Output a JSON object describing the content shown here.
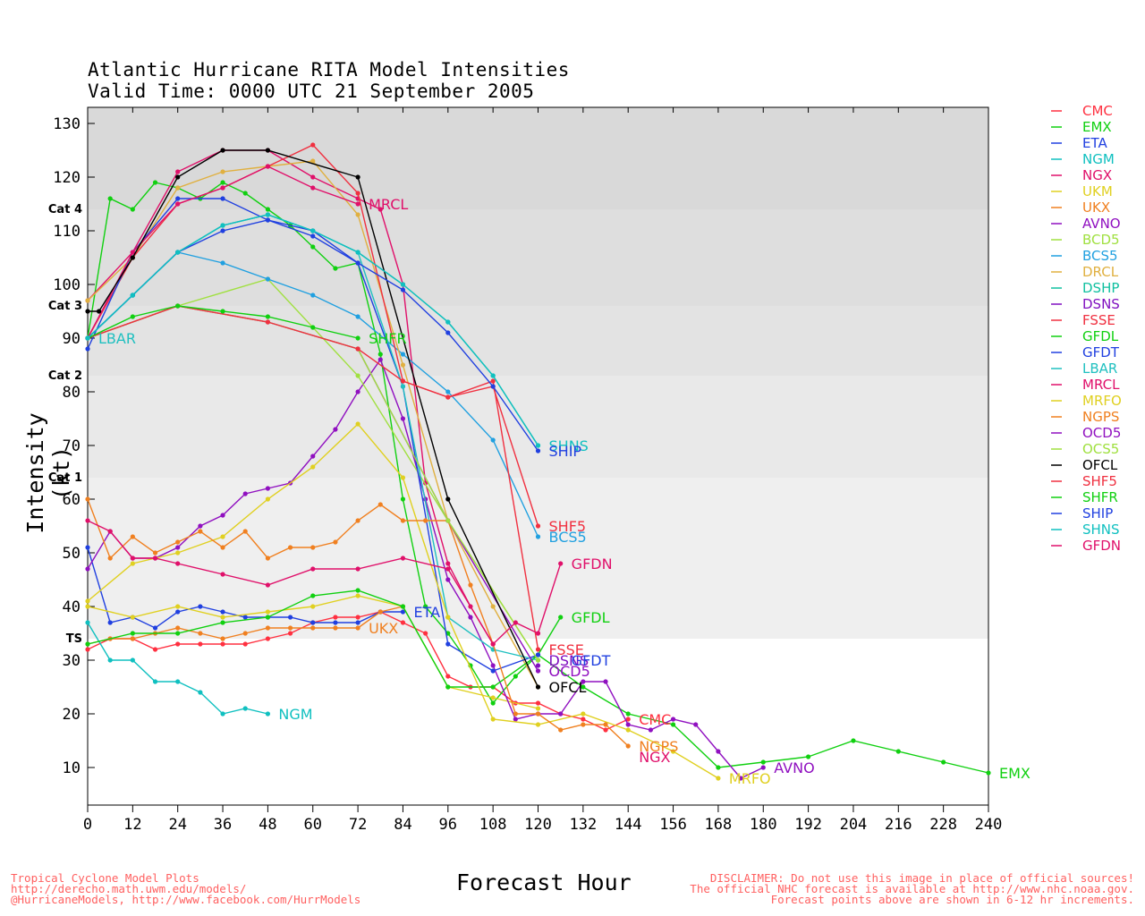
{
  "chart_data": {
    "type": "line",
    "title": "Atlantic Hurricane RITA Model Intensities",
    "subtitle": "Valid Time: 0000 UTC 21 September 2005",
    "xlabel": "Forecast Hour",
    "ylabel": "Intensity (kt)",
    "xlim": [
      0,
      240
    ],
    "ylim": [
      3,
      133
    ],
    "xticks": [
      0,
      12,
      24,
      36,
      48,
      60,
      72,
      84,
      96,
      108,
      120,
      132,
      144,
      156,
      168,
      180,
      192,
      204,
      216,
      228,
      240
    ],
    "yticks": [
      10,
      20,
      30,
      40,
      50,
      60,
      70,
      80,
      90,
      100,
      110,
      120,
      130
    ],
    "categories": [
      {
        "label": "TS",
        "min": 34,
        "max": 64,
        "color": "#efefef"
      },
      {
        "label": "Cat 1",
        "min": 64,
        "max": 83,
        "color": "#e9e9e9"
      },
      {
        "label": "Cat 2",
        "min": 83,
        "max": 96,
        "color": "#e3e3e3"
      },
      {
        "label": "Cat 3",
        "min": 96,
        "max": 114,
        "color": "#dedede"
      },
      {
        "label": "Cat 4",
        "min": 114,
        "max": 133,
        "color": "#d9d9d9"
      }
    ],
    "series": [
      {
        "name": "CMC",
        "color": "#ff3040",
        "x": [
          0,
          6,
          12,
          18,
          24,
          30,
          36,
          42,
          48,
          54,
          60,
          66,
          72,
          78,
          84,
          90,
          96,
          102,
          108,
          114,
          120,
          126,
          132,
          138,
          144
        ],
        "y": [
          32,
          34,
          34,
          32,
          33,
          33,
          33,
          33,
          34,
          35,
          37,
          38,
          38,
          39,
          37,
          35,
          27,
          25,
          25,
          22,
          22,
          20,
          19,
          17,
          19
        ]
      },
      {
        "name": "EMX",
        "color": "#10d010",
        "x": [
          0,
          6,
          12,
          18,
          24,
          30,
          36,
          42,
          48,
          54,
          60,
          66,
          72,
          78,
          84,
          90,
          96,
          102,
          108,
          114,
          120,
          132,
          144,
          156,
          168,
          180,
          192,
          204,
          216,
          228,
          240
        ],
        "y": [
          90,
          116,
          114,
          119,
          118,
          116,
          119,
          117,
          114,
          111,
          107,
          103,
          104,
          87,
          60,
          40,
          35,
          29,
          22,
          27,
          31,
          25,
          20,
          18,
          10,
          11,
          12,
          15,
          13,
          11,
          9
        ]
      },
      {
        "name": "ETA",
        "color": "#2040e0",
        "x": [
          0,
          6,
          12,
          18,
          24,
          30,
          36,
          42,
          48,
          54,
          60,
          66,
          72,
          78,
          84
        ],
        "y": [
          51,
          37,
          38,
          36,
          39,
          40,
          39,
          38,
          38,
          38,
          37,
          37,
          37,
          39,
          39
        ]
      },
      {
        "name": "NGM",
        "color": "#10c0c0",
        "x": [
          0,
          6,
          12,
          18,
          24,
          30,
          36,
          42,
          48
        ],
        "y": [
          37,
          30,
          30,
          26,
          26,
          24,
          20,
          21,
          20
        ]
      },
      {
        "name": "NGX",
        "color": "#e0106a",
        "x": [
          0,
          12,
          24,
          36,
          48,
          60,
          72,
          78,
          84,
          90,
          96,
          102,
          108
        ],
        "y": [
          97,
          106,
          121,
          125,
          125,
          120,
          116,
          114,
          100,
          63,
          48,
          40,
          33
        ]
      },
      {
        "name": "UKM",
        "color": "#e0d020",
        "x": [
          0,
          12,
          24,
          36,
          48,
          60,
          72,
          84,
          96,
          108,
          120
        ],
        "y": [
          40,
          38,
          40,
          38,
          39,
          40,
          42,
          40,
          25,
          23,
          21
        ]
      },
      {
        "name": "UKX",
        "color": "#f08020",
        "x": [
          0,
          6,
          12,
          18,
          24,
          30,
          36,
          42,
          48,
          54,
          60,
          66,
          72,
          78,
          84
        ],
        "y": [
          33,
          34,
          34,
          35,
          36,
          35,
          34,
          35,
          36,
          36,
          36,
          36,
          36,
          39,
          40
        ]
      },
      {
        "name": "AVNO",
        "color": "#9010c0",
        "x": [
          0,
          6,
          12,
          18,
          24,
          30,
          36,
          42,
          48,
          54,
          60,
          66,
          72,
          78,
          84,
          90,
          96,
          102,
          108,
          114,
          120,
          126,
          132,
          138,
          144,
          150,
          156,
          162,
          168,
          174,
          180
        ],
        "y": [
          47,
          54,
          49,
          49,
          51,
          55,
          57,
          61,
          62,
          63,
          68,
          73,
          80,
          86,
          75,
          60,
          45,
          38,
          29,
          19,
          20,
          20,
          26,
          26,
          18,
          17,
          19,
          18,
          13,
          8,
          10
        ]
      },
      {
        "name": "BCD5",
        "color": "#a0e040",
        "x": [
          0,
          24,
          48,
          72,
          96,
          120
        ],
        "y": [
          90,
          96,
          101,
          83,
          56,
          30
        ]
      },
      {
        "name": "BCS5",
        "color": "#20a0e0",
        "x": [
          0,
          12,
          24,
          36,
          48,
          60,
          72,
          84,
          96,
          108,
          120
        ],
        "y": [
          90,
          98,
          106,
          104,
          101,
          98,
          94,
          87,
          80,
          71,
          53
        ]
      },
      {
        "name": "DRCL",
        "color": "#e0b040",
        "x": [
          0,
          12,
          24,
          36,
          48,
          60,
          72,
          84,
          96,
          108,
          120
        ],
        "y": [
          97,
          105,
          118,
          121,
          122,
          123,
          113,
          85,
          56,
          40,
          25
        ]
      },
      {
        "name": "DSHP",
        "color": "#10c0a0",
        "x": [
          0,
          12,
          24,
          36,
          48,
          60,
          72,
          84,
          96,
          108,
          120
        ],
        "y": [
          90,
          98,
          106,
          111,
          113,
          110,
          106,
          100,
          93,
          83,
          70
        ]
      },
      {
        "name": "DSNS",
        "color": "#8010c0",
        "x": [
          120
        ],
        "y": [
          29
        ]
      },
      {
        "name": "FSSE",
        "color": "#f03040",
        "x": [
          0,
          12,
          24,
          36,
          48,
          60,
          72,
          84,
          96,
          108,
          120
        ],
        "y": [
          90,
          105,
          115,
          118,
          122,
          126,
          117,
          82,
          79,
          82,
          32
        ]
      },
      {
        "name": "GFDL",
        "color": "#10d010",
        "x": [
          0,
          12,
          24,
          36,
          48,
          60,
          72,
          84,
          96,
          108,
          120,
          126
        ],
        "y": [
          33,
          35,
          35,
          37,
          38,
          42,
          43,
          40,
          25,
          25,
          31,
          38
        ]
      },
      {
        "name": "GFDT",
        "color": "#2040e0",
        "x": [
          0,
          12,
          24,
          36,
          48,
          60,
          72,
          84,
          96,
          108,
          120
        ],
        "y": [
          88,
          106,
          116,
          116,
          112,
          110,
          104,
          81,
          33,
          28,
          31
        ]
      },
      {
        "name": "LBAR",
        "color": "#20c0c0",
        "x": [
          0,
          12,
          24,
          36,
          48,
          60,
          72,
          84,
          96,
          108,
          120
        ],
        "y": [
          90,
          98,
          106,
          111,
          113,
          110,
          106,
          81,
          38,
          32,
          30
        ]
      },
      {
        "name": "MRCL",
        "color": "#e0106a",
        "x": [
          0,
          12,
          24,
          36,
          48,
          60,
          72
        ],
        "y": [
          90,
          106,
          115,
          118,
          122,
          118,
          115
        ]
      },
      {
        "name": "MRFO",
        "color": "#e0d020",
        "x": [
          0,
          12,
          24,
          36,
          48,
          60,
          72,
          84,
          96,
          108,
          120,
          132,
          144,
          156,
          168
        ],
        "y": [
          41,
          48,
          50,
          53,
          60,
          66,
          74,
          64,
          38,
          19,
          18,
          20,
          17,
          13,
          8
        ]
      },
      {
        "name": "NGPS",
        "color": "#f08020",
        "x": [
          0,
          6,
          12,
          18,
          24,
          30,
          36,
          42,
          48,
          54,
          60,
          66,
          72,
          78,
          84,
          90,
          96,
          102,
          108,
          114,
          120,
          126,
          132,
          138,
          144
        ],
        "y": [
          60,
          49,
          53,
          50,
          52,
          54,
          51,
          54,
          49,
          51,
          51,
          52,
          56,
          59,
          56,
          56,
          56,
          44,
          33,
          20,
          20,
          17,
          18,
          18,
          14
        ]
      },
      {
        "name": "OCD5",
        "color": "#9010c0",
        "x": [
          0,
          24,
          48,
          72,
          96,
          120
        ],
        "y": [
          90,
          96,
          93,
          88,
          56,
          28
        ]
      },
      {
        "name": "OCS5",
        "color": "#a0e040",
        "x": [
          0,
          24,
          48,
          72,
          96,
          120
        ],
        "y": [
          90,
          96,
          93,
          88,
          56,
          30
        ]
      },
      {
        "name": "OFCL",
        "color": "#000000",
        "x": [
          0,
          3,
          12,
          24,
          36,
          48,
          72,
          96,
          120
        ],
        "y": [
          95,
          95,
          105,
          120,
          125,
          125,
          120,
          60,
          25
        ]
      },
      {
        "name": "SHF5",
        "color": "#f03040",
        "x": [
          0,
          24,
          48,
          72,
          84,
          96,
          108,
          120
        ],
        "y": [
          90,
          96,
          93,
          88,
          82,
          79,
          81,
          55
        ]
      },
      {
        "name": "SHFR",
        "color": "#10d010",
        "x": [
          0,
          12,
          24,
          36,
          48,
          60,
          72
        ],
        "y": [
          90,
          94,
          96,
          95,
          94,
          92,
          90
        ]
      },
      {
        "name": "SHIP",
        "color": "#2040e0",
        "x": [
          0,
          12,
          24,
          36,
          48,
          60,
          72,
          84,
          96,
          108,
          120
        ],
        "y": [
          90,
          98,
          106,
          110,
          112,
          109,
          104,
          99,
          91,
          81,
          69
        ]
      },
      {
        "name": "SHNS",
        "color": "#10c0c0",
        "x": [
          0,
          12,
          24,
          36,
          48,
          60,
          72,
          84,
          96,
          108,
          120
        ],
        "y": [
          90,
          98,
          106,
          111,
          113,
          110,
          106,
          100,
          93,
          83,
          70
        ]
      },
      {
        "name": "GFDN",
        "color": "#e0106a",
        "x": [
          0,
          6,
          12,
          18,
          24,
          36,
          48,
          60,
          72,
          84,
          96,
          108,
          114,
          120,
          126
        ],
        "y": [
          56,
          54,
          49,
          49,
          48,
          46,
          44,
          47,
          47,
          49,
          47,
          33,
          37,
          35,
          48
        ]
      }
    ],
    "end_labels": [
      {
        "text": "MRCL",
        "series": "MRCL",
        "x": 72,
        "y": 115
      },
      {
        "text": "LBAR",
        "series": "LBAR",
        "x": 0,
        "y": 90
      },
      {
        "text": "SHFR",
        "series": "SHFR",
        "x": 72,
        "y": 90
      },
      {
        "text": "SHNS",
        "series": "SHNS",
        "x": 120,
        "y": 70
      },
      {
        "text": "SHIP",
        "series": "SHIP",
        "x": 120,
        "y": 69
      },
      {
        "text": "SHF5",
        "series": "SHF5",
        "x": 120,
        "y": 55
      },
      {
        "text": "BCS5",
        "series": "BCS5",
        "x": 120,
        "y": 53
      },
      {
        "text": "GFDN",
        "series": "GFDN",
        "x": 126,
        "y": 48
      },
      {
        "text": "GFDL",
        "series": "GFDL",
        "x": 126,
        "y": 38
      },
      {
        "text": "ETA",
        "series": "ETA",
        "x": 84,
        "y": 39
      },
      {
        "text": "UKX",
        "series": "UKX",
        "x": 72,
        "y": 36
      },
      {
        "text": "FSSE",
        "series": "FSSE",
        "x": 120,
        "y": 32
      },
      {
        "text": "DSNS",
        "series": "DSNS",
        "x": 120,
        "y": 30
      },
      {
        "text": "GFDT",
        "series": "GFDT",
        "x": 126,
        "y": 30
      },
      {
        "text": "OCD5",
        "series": "OCD5",
        "x": 120,
        "y": 28
      },
      {
        "text": "OFCL",
        "series": "OFCL",
        "x": 120,
        "y": 25
      },
      {
        "text": "NGM",
        "series": "NGM",
        "x": 48,
        "y": 20
      },
      {
        "text": "CMC",
        "series": "CMC",
        "x": 144,
        "y": 19
      },
      {
        "text": "NGPS",
        "series": "NGPS",
        "x": 144,
        "y": 14
      },
      {
        "text": "NGX",
        "series": "NGX",
        "x": 144,
        "y": 12
      },
      {
        "text": "AVNO",
        "series": "AVNO",
        "x": 180,
        "y": 10
      },
      {
        "text": "MRFO",
        "series": "MRFO",
        "x": 168,
        "y": 8
      },
      {
        "text": "EMX",
        "series": "EMX",
        "x": 240,
        "y": 9
      }
    ]
  },
  "footer_left": [
    "Tropical Cyclone Model Plots",
    "http://derecho.math.uwm.edu/models/",
    "@HurricaneModels, http://www.facebook.com/HurrModels"
  ],
  "footer_right": [
    "DISCLAIMER: Do not use this image in place of official sources!",
    "The official NHC forecast is available at http://www.nhc.noaa.gov.",
    "Forecast points above are shown in 6-12 hr increments."
  ]
}
